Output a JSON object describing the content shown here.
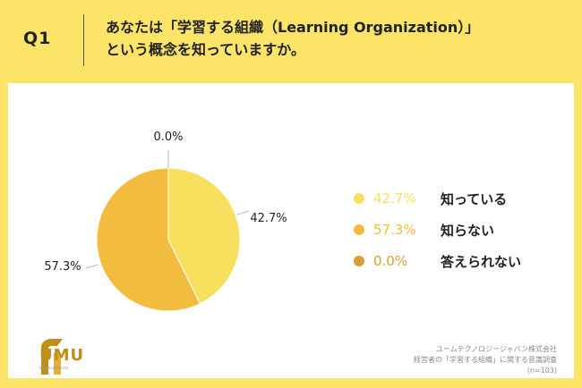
{
  "header": {
    "q_label": "Q1",
    "question_line1": "あなたは「学習する組織（Learning Organization）」",
    "question_line2": "という概念を知っていますか。"
  },
  "chart_data": {
    "type": "pie",
    "categories": [
      "知っている",
      "知らない",
      "答えられない"
    ],
    "values": [
      42.7,
      57.3,
      0.0
    ],
    "value_labels": [
      "42.7%",
      "57.3%",
      "0.0%"
    ],
    "colors": [
      "#f8e05f",
      "#f2bd3f",
      "#d9a031"
    ],
    "legend_placement": "right"
  },
  "footer": {
    "logo_text": "UMU",
    "logo_url": "www.umu.co",
    "source_line1": "ユームテクノロジージャパン株式会社",
    "source_line2": "経営者の「学習する組織」に関する意識調査",
    "source_line3": "(n=103)"
  }
}
